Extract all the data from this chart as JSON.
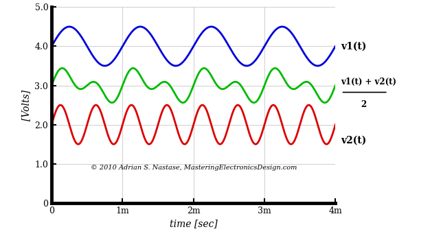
{
  "title": "",
  "xlabel": "time [sec]",
  "ylabel": "[Volts]",
  "xlim": [
    0,
    0.004
  ],
  "ylim": [
    0,
    5.0
  ],
  "xticks": [
    0,
    0.001,
    0.002,
    0.003,
    0.004
  ],
  "xtick_labels": [
    "0",
    "1m",
    "2m",
    "3m",
    "4m"
  ],
  "yticks": [
    0,
    1.0,
    2.0,
    3.0,
    4.0,
    5.0
  ],
  "ytick_labels": [
    "0",
    "1.0",
    "2.0",
    "3.0",
    "4.0",
    "5.0"
  ],
  "v1_dc": 4.0,
  "v1_amp": 0.5,
  "v1_freq": 1000,
  "v1_color": "#0000dd",
  "v1_label": "v1(t)",
  "v2_dc": 2.0,
  "v2_amp": 0.5,
  "v2_freq": 2000,
  "v2_color": "#dd0000",
  "v2_label": "v2(t)",
  "avg_color": "#00bb00",
  "avg_label_top": "v1(t) + v2(t)",
  "avg_label_bot": "2",
  "annotation": "© 2010 Adrian S. Nastase, MasteringElectronicsDesign.com",
  "linewidth": 2.0,
  "background_color": "#ffffff",
  "grid_color": "#bbbbbb",
  "fig_width": 6.26,
  "fig_height": 3.44,
  "dpi": 100
}
